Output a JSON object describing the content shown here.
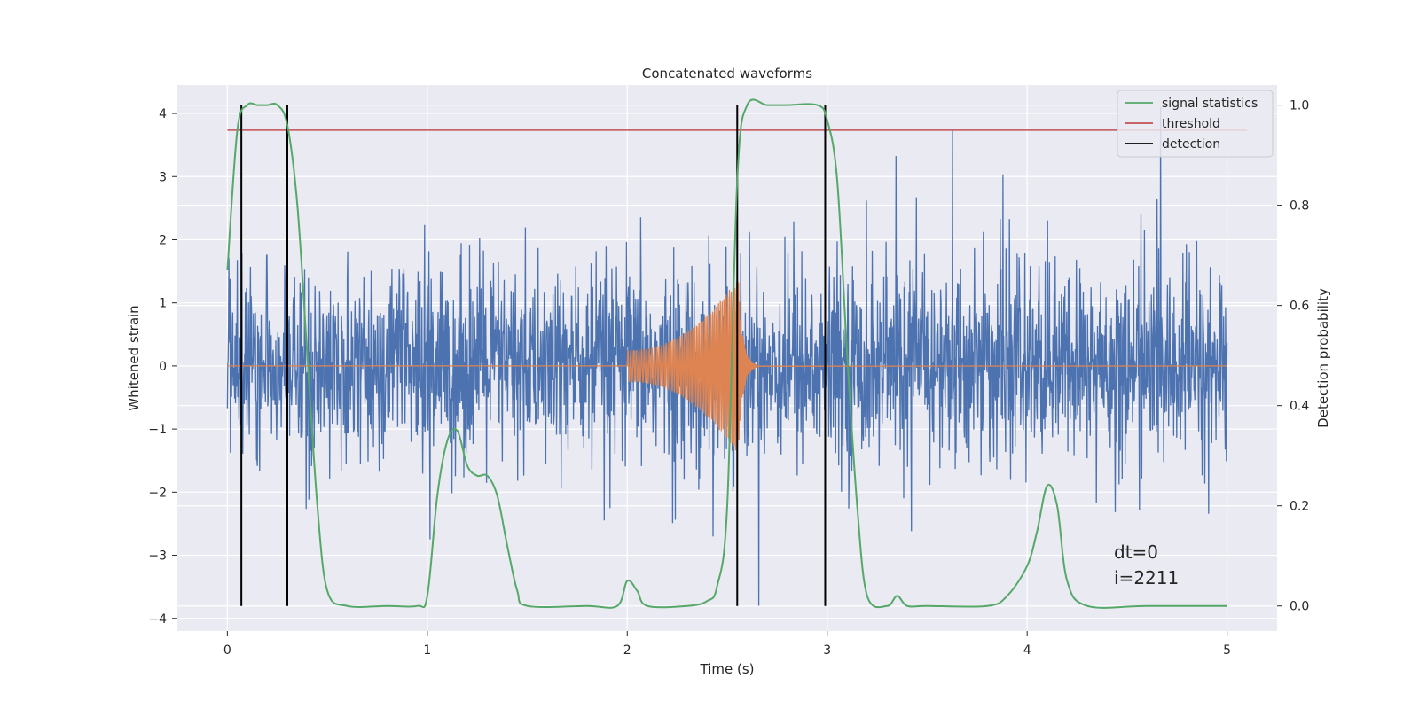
{
  "chart_data": {
    "type": "line",
    "title": "Concatenated waveforms",
    "xlabel": "Time (s)",
    "ylabel": "Whitened strain",
    "y2label": "Detection probability",
    "xlim": [
      -0.25,
      5.25
    ],
    "ylim": [
      -4.2,
      4.45
    ],
    "y2lim": [
      -0.05,
      1.04
    ],
    "x_ticks": [
      0,
      1,
      2,
      3,
      4,
      5
    ],
    "y_ticks": [
      -4,
      -3,
      -2,
      -1,
      0,
      1,
      2,
      3,
      4
    ],
    "y2_ticks": [
      0.0,
      0.2,
      0.4,
      0.6,
      0.8,
      1.0
    ],
    "x_tick_labels": [
      "0",
      "1",
      "2",
      "3",
      "4",
      "5"
    ],
    "y_tick_labels": [
      "−4",
      "−3",
      "−2",
      "−1",
      "0",
      "1",
      "2",
      "3",
      "4"
    ],
    "y2_tick_labels": [
      "0.0",
      "0.2",
      "0.4",
      "0.6",
      "0.8",
      "1.0"
    ],
    "grid": true,
    "legend_position": "top-right",
    "colors": {
      "background": "#eaeaf2",
      "grid": "#ffffff",
      "noise": "#4c72b0",
      "signal": "#dd8452",
      "statistics": "#55a868",
      "threshold": "#c44e52",
      "detection": "#000000"
    },
    "series": [
      {
        "name": "signal statistics",
        "axis": "right",
        "x": [
          0,
          0.05,
          0.1,
          0.15,
          0.2,
          0.25,
          0.3,
          0.35,
          0.4,
          0.45,
          0.5,
          0.6,
          0.8,
          0.95,
          1.0,
          1.05,
          1.1,
          1.15,
          1.2,
          1.25,
          1.3,
          1.35,
          1.4,
          1.45,
          1.5,
          1.8,
          1.95,
          2.0,
          2.05,
          2.1,
          2.3,
          2.4,
          2.45,
          2.5,
          2.55,
          2.6,
          2.7,
          2.8,
          2.95,
          3.0,
          3.05,
          3.1,
          3.15,
          3.2,
          3.3,
          3.35,
          3.4,
          3.5,
          3.8,
          3.9,
          4.0,
          4.05,
          4.1,
          4.15,
          4.2,
          4.3,
          4.6,
          5.0
        ],
        "y": [
          0.67,
          0.95,
          1.0,
          1.0,
          1.0,
          1.0,
          0.96,
          0.8,
          0.5,
          0.2,
          0.03,
          0.0,
          0.0,
          0.0,
          0.02,
          0.22,
          0.33,
          0.35,
          0.28,
          0.26,
          0.26,
          0.22,
          0.12,
          0.03,
          0.0,
          0.0,
          0.0,
          0.05,
          0.03,
          0.0,
          0.0,
          0.01,
          0.04,
          0.2,
          0.85,
          1.0,
          1.0,
          1.0,
          1.0,
          0.97,
          0.85,
          0.5,
          0.2,
          0.02,
          0.0,
          0.02,
          0.0,
          0.0,
          0.0,
          0.02,
          0.08,
          0.15,
          0.24,
          0.2,
          0.05,
          0.0,
          0.0,
          0.0
        ]
      },
      {
        "name": "threshold",
        "axis": "right",
        "x": [
          0,
          5.1
        ],
        "y": [
          0.95,
          0.95
        ]
      },
      {
        "name": "detection",
        "axis": "right",
        "x": [
          0.07,
          0.3,
          2.55,
          2.99
        ],
        "y_range": [
          0.0,
          1.0
        ]
      }
    ],
    "annotations": [
      "dt=0",
      "i=2211"
    ]
  }
}
